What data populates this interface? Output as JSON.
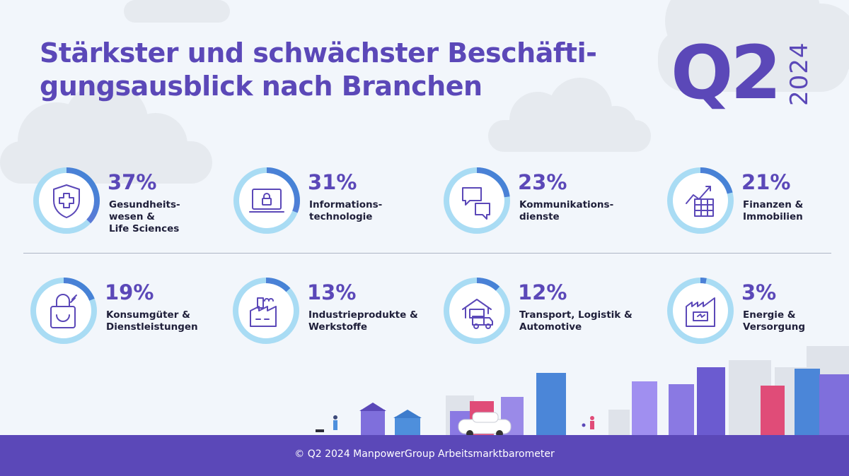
{
  "header": {
    "title": "Stärkster und schwächster Beschäfti-\ngungsausblick nach Branchen",
    "quarter": "Q2",
    "year": "2024"
  },
  "sectors": [
    {
      "percent_label": "37%",
      "percent": 37,
      "label": "Gesundheits-\nwesen &\nLife Sciences",
      "icon": "shield-cross-icon"
    },
    {
      "percent_label": "31%",
      "percent": 31,
      "label": "Informations-\ntechnologie",
      "icon": "laptop-lock-icon"
    },
    {
      "percent_label": "23%",
      "percent": 23,
      "label": "Kommunikations-\ndienste",
      "icon": "chat-bubbles-icon"
    },
    {
      "percent_label": "21%",
      "percent": 21,
      "label": "Finanzen &\nImmobilien",
      "icon": "finance-chart-icon"
    },
    {
      "percent_label": "19%",
      "percent": 19,
      "label": "Konsumgüter &\nDienstleistungen",
      "icon": "shopping-bag-icon"
    },
    {
      "percent_label": "13%",
      "percent": 13,
      "label": "Industrieprodukte &\nWerkstoffe",
      "icon": "factory-icon"
    },
    {
      "percent_label": "12%",
      "percent": 12,
      "label": "Transport, Logistik &\nAutomotive",
      "icon": "truck-warehouse-icon"
    },
    {
      "percent_label": "3%",
      "percent": 3,
      "label": "Energie &\nVersorgung",
      "icon": "power-plant-icon"
    }
  ],
  "colors": {
    "accent": "#5b48b8",
    "ring_track": "#a9dcf4",
    "ring_fill_light": "#7d6dd6",
    "ring_fill_dark": "#3d86d6",
    "footer_bg": "#5b48b8"
  },
  "footer": {
    "text": "© Q2 2024 ManpowerGroup Arbeitsmarktbarometer"
  }
}
